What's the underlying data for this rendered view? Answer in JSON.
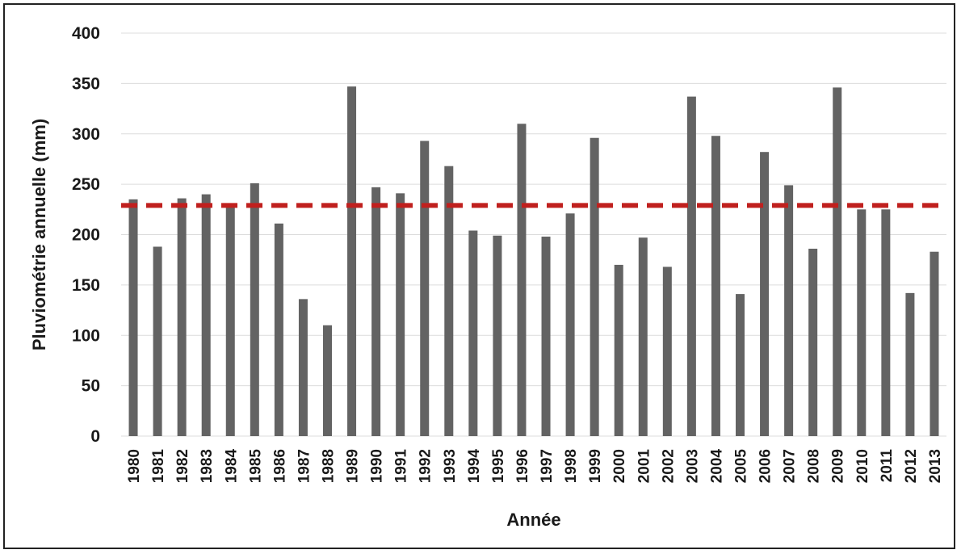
{
  "chart_data": {
    "type": "bar",
    "title": "",
    "xlabel": "Année",
    "ylabel": "Pluviométrie annuelle (mm)",
    "ylim": [
      0,
      400
    ],
    "yticks": [
      0,
      50,
      100,
      150,
      200,
      250,
      300,
      350,
      400
    ],
    "grid": true,
    "legend": "none",
    "bar_color": "#636363",
    "categories": [
      "1980",
      "1981",
      "1982",
      "1983",
      "1984",
      "1985",
      "1986",
      "1987",
      "1988",
      "1989",
      "1990",
      "1991",
      "1992",
      "1993",
      "1994",
      "1995",
      "1996",
      "1997",
      "1998",
      "1999",
      "2000",
      "2001",
      "2002",
      "2003",
      "2004",
      "2005",
      "2006",
      "2007",
      "2008",
      "2009",
      "2010",
      "2011",
      "2012",
      "2013"
    ],
    "values": [
      235,
      188,
      236,
      240,
      228,
      251,
      211,
      136,
      110,
      347,
      247,
      241,
      293,
      268,
      204,
      199,
      310,
      198,
      221,
      296,
      170,
      197,
      168,
      337,
      298,
      141,
      282,
      249,
      186,
      346,
      225,
      225,
      142,
      183
    ],
    "reference_line": {
      "value": 229,
      "style": "dashed",
      "color": "#c0201e"
    }
  }
}
